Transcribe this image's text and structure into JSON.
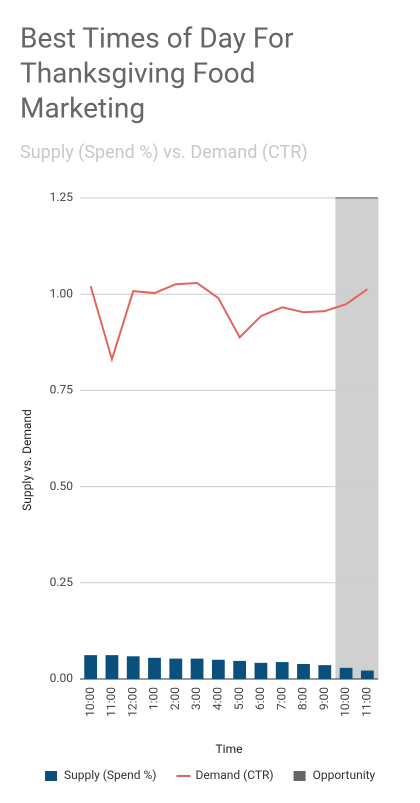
{
  "chart_data": {
    "type": "combo",
    "title": [
      "Best Times of Day For",
      "Thanksgiving Food",
      "Marketing"
    ],
    "subtitle": "Supply (Spend %) vs. Demand (CTR)",
    "x_label": "Time",
    "y_label": "Supply vs. Demand",
    "categories": [
      "10:00",
      "11:00",
      "12:00",
      "1:00",
      "2:00",
      "3:00",
      "4:00",
      "5:00",
      "6:00",
      "7:00",
      "8:00",
      "9:00",
      "10:00",
      "11:00"
    ],
    "series": [
      {
        "name": "Supply (Spend %)",
        "type": "bar",
        "color": "#0b4f7c",
        "values": [
          0.062,
          0.062,
          0.059,
          0.055,
          0.053,
          0.053,
          0.05,
          0.047,
          0.042,
          0.044,
          0.039,
          0.036,
          0.029,
          0.022
        ]
      },
      {
        "name": "Demand (CTR)",
        "type": "line",
        "color": "#e06660",
        "values": [
          1.021,
          0.831,
          1.008,
          1.003,
          1.026,
          1.029,
          0.99,
          0.888,
          0.943,
          0.966,
          0.953,
          0.956,
          0.974,
          1.013
        ]
      },
      {
        "name": "Opportunity",
        "type": "area",
        "color": "#666666",
        "values": [
          null,
          null,
          null,
          null,
          null,
          null,
          null,
          null,
          null,
          null,
          null,
          null,
          1.25,
          1.25
        ]
      }
    ],
    "ylim": [
      0,
      1.25
    ],
    "yticks": [
      {
        "value": 0,
        "label": "0.00"
      },
      {
        "value": 0.25,
        "label": "0.25"
      },
      {
        "value": 0.5,
        "label": "0.50"
      },
      {
        "value": 0.75,
        "label": "0.75"
      },
      {
        "value": 1,
        "label": "1.00"
      },
      {
        "value": 1.25,
        "label": "1.25"
      }
    ],
    "grid": true,
    "legend": "bottom"
  }
}
